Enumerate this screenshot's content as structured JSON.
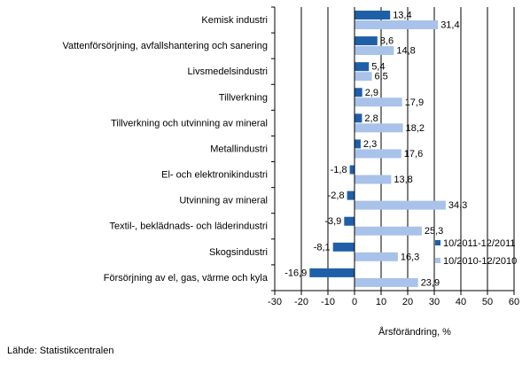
{
  "chart_data": {
    "type": "bar",
    "orientation": "horizontal",
    "categories": [
      "Kemisk industri",
      "Vattenförsörjning, avfallshantering och sanering",
      "Livsmedelsindustri",
      "Tillverkning",
      "Tillverkning och utvinning av mineral",
      "Metallindustri",
      "El- och elektronikindustri",
      "Utvinning av mineral",
      "Textil-, beklädnads- och läderindustri",
      "Skogsindustri",
      "Försörjning av el, gas, värme och kyla"
    ],
    "series": [
      {
        "name": "10/2011-12/2011",
        "color": "#1f5fa8",
        "values": [
          13.4,
          8.6,
          5.4,
          2.9,
          2.8,
          2.3,
          -1.8,
          -2.8,
          -3.9,
          -8.1,
          -16.9
        ],
        "labels": [
          "13,4",
          "8,6",
          "5,4",
          "2,9",
          "2,8",
          "2,3",
          "-1,8",
          "-2,8",
          "-3,9",
          "-8,1",
          "-16,9"
        ]
      },
      {
        "name": "10/2010-12/2010",
        "color": "#a9c2ea",
        "values": [
          31.4,
          14.8,
          6.5,
          17.9,
          18.2,
          17.6,
          13.8,
          34.3,
          25.3,
          16.3,
          23.9
        ],
        "labels": [
          "31,4",
          "14,8",
          "6,5",
          "17,9",
          "18,2",
          "17,6",
          "13,8",
          "34,3",
          "25,3",
          "16,3",
          "23,9"
        ]
      }
    ],
    "xlabel": "Årsförändring, %",
    "xlim": [
      -30,
      60
    ],
    "xticks": [
      -30,
      -20,
      -10,
      0,
      10,
      20,
      30,
      40,
      50,
      60
    ],
    "xtick_labels": [
      "-30",
      "-20",
      "-10",
      "0",
      "10",
      "20",
      "30",
      "40",
      "50",
      "60"
    ],
    "grid": true,
    "legend_position": "bottom-right"
  },
  "source": "Lähde: Statistikcentralen"
}
